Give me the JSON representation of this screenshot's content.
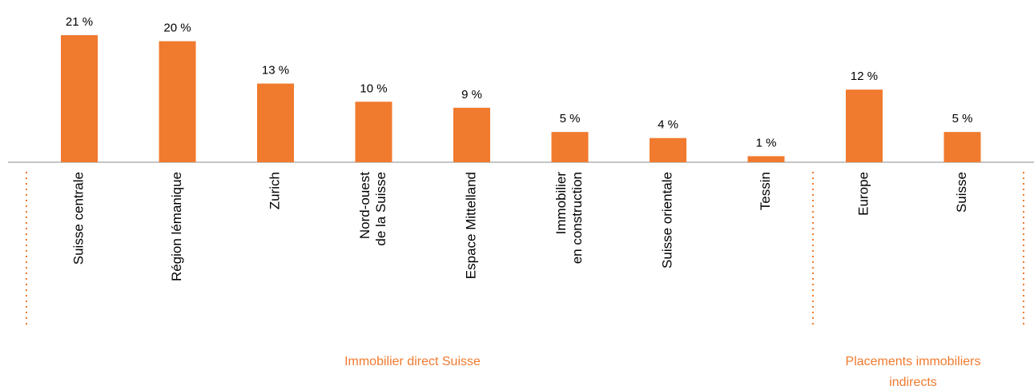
{
  "chart_data": {
    "type": "bar",
    "categories": [
      "Suisse centrale",
      "Région lémanique",
      "Zurich",
      [
        "Nord-ouest",
        "de la Suisse"
      ],
      "Espace Mittelland",
      [
        "Immobilier",
        "en construction"
      ],
      "Suisse orientale",
      "Tessin",
      "Europe",
      "Suisse"
    ],
    "values": [
      21,
      20,
      13,
      10,
      9,
      5,
      4,
      1,
      12,
      5
    ],
    "value_labels": [
      "21 %",
      "20 %",
      "13 %",
      "10 %",
      "9 %",
      "5 %",
      "4 %",
      "1 %",
      "12 %",
      "5 %"
    ],
    "color": "#f07a2e",
    "groups": [
      [
        "Immobilier direct Suisse"
      ],
      [
        "Placements immobiliers",
        "indirects"
      ]
    ]
  }
}
